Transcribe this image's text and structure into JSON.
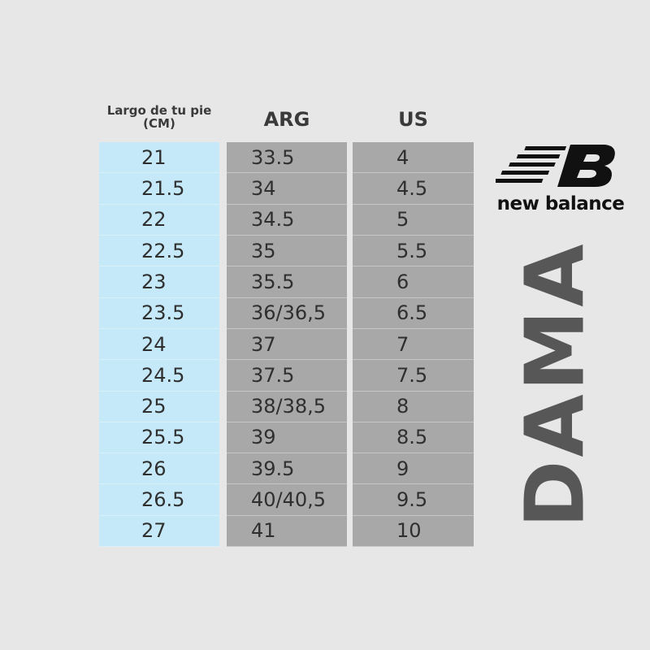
{
  "headers": [
    "Largo de tu pie (CM)",
    "ARG",
    "US"
  ],
  "rows": [
    [
      "21",
      "33.5",
      "4"
    ],
    [
      "21.5",
      "34",
      "4.5"
    ],
    [
      "22",
      "34.5",
      "5"
    ],
    [
      "22.5",
      "35",
      "5.5"
    ],
    [
      "23",
      "35.5",
      "6"
    ],
    [
      "23.5",
      "36/36,5",
      "6.5"
    ],
    [
      "24",
      "37",
      "7"
    ],
    [
      "24.5",
      "37.5",
      "7.5"
    ],
    [
      "25",
      "38/38,5",
      "8"
    ],
    [
      "25.5",
      "39",
      "8.5"
    ],
    [
      "26",
      "39.5",
      "9"
    ],
    [
      "26.5",
      "40/40,5",
      "9.5"
    ],
    [
      "27",
      "41",
      "10"
    ]
  ],
  "brand": {
    "logo_icon": "nb-logo-icon",
    "name": "new balance"
  },
  "category": "DAMA",
  "colors": {
    "cm_column": "#c5e9f9",
    "size_columns": "#a8a8a8",
    "background": "#e7e7e7"
  }
}
